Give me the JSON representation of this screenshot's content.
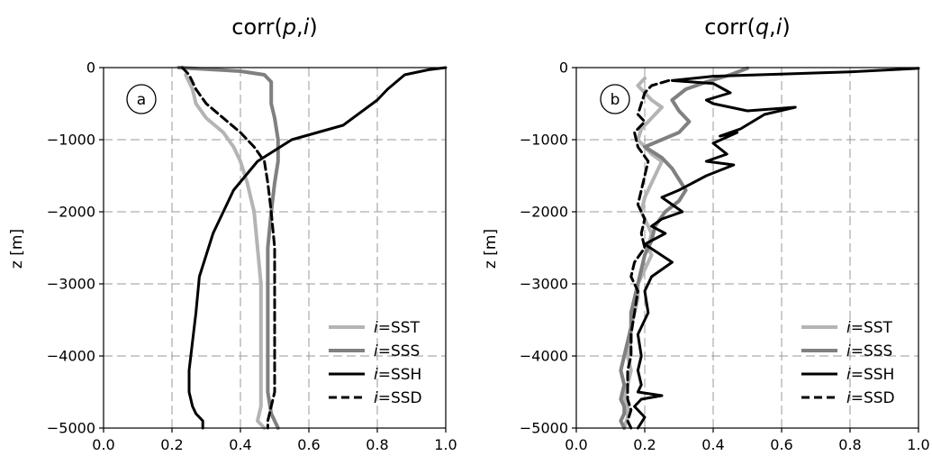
{
  "chart_data": [
    {
      "type": "line",
      "title_prefix": "corr(",
      "title_var": "p",
      "title_sep": ",",
      "title_idx": "i",
      "title_suffix": ")",
      "ylabel": "z [m]",
      "xlim": [
        0.0,
        1.0
      ],
      "ylim": [
        -5000,
        0
      ],
      "xticks": [
        "0.0",
        "0.2",
        "0.4",
        "0.6",
        "0.8",
        "1.0"
      ],
      "yticks": [
        "0",
        "−1000",
        "−2000",
        "−3000",
        "−4000",
        "−5000"
      ],
      "grid": true,
      "panel_label": "a",
      "legend_position": "lower-right",
      "series": [
        {
          "name": "SST",
          "color": "#b4b4b4",
          "style": "solid",
          "width": 4,
          "x": [
            0.24,
            0.26,
            0.27,
            0.3,
            0.35,
            0.38,
            0.4,
            0.42,
            0.44,
            0.45,
            0.46,
            0.46,
            0.46,
            0.46,
            0.46,
            0.46,
            0.45,
            0.47
          ],
          "y": [
            -100,
            -300,
            -500,
            -700,
            -900,
            -1100,
            -1300,
            -1600,
            -2000,
            -2500,
            -3000,
            -3500,
            -4000,
            -4200,
            -4500,
            -4700,
            -4900,
            -5000
          ]
        },
        {
          "name": "SSS",
          "color": "#808080",
          "style": "solid",
          "width": 4,
          "x": [
            0.22,
            0.4,
            0.47,
            0.49,
            0.49,
            0.49,
            0.5,
            0.51,
            0.51,
            0.5,
            0.49,
            0.48,
            0.48,
            0.48,
            0.48,
            0.48,
            0.49,
            0.51
          ],
          "y": [
            0,
            -50,
            -100,
            -200,
            -350,
            -500,
            -700,
            -1000,
            -1300,
            -1600,
            -2000,
            -2500,
            -3000,
            -3500,
            -4000,
            -4500,
            -4800,
            -5000
          ]
        },
        {
          "name": "SSH",
          "color": "#000000",
          "style": "solid",
          "width": 3,
          "x": [
            1.0,
            0.95,
            0.88,
            0.83,
            0.8,
            0.7,
            0.55,
            0.45,
            0.38,
            0.32,
            0.28,
            0.27,
            0.26,
            0.25,
            0.25,
            0.26,
            0.27,
            0.28,
            0.29,
            0.29
          ],
          "y": [
            0,
            -30,
            -100,
            -300,
            -450,
            -800,
            -1000,
            -1300,
            -1700,
            -2300,
            -2900,
            -3400,
            -3800,
            -4200,
            -4500,
            -4700,
            -4800,
            -4850,
            -4900,
            -5000
          ]
        },
        {
          "name": "SSD",
          "color": "#000000",
          "style": "dashed",
          "width": 3,
          "x": [
            0.23,
            0.25,
            0.27,
            0.3,
            0.35,
            0.4,
            0.44,
            0.47,
            0.48,
            0.49,
            0.5,
            0.5,
            0.5,
            0.5,
            0.5,
            0.49,
            0.48,
            0.48
          ],
          "y": [
            0,
            -100,
            -300,
            -500,
            -700,
            -900,
            -1100,
            -1300,
            -1600,
            -2000,
            -2500,
            -3000,
            -3500,
            -4000,
            -4500,
            -4700,
            -4900,
            -5000
          ]
        }
      ]
    },
    {
      "type": "line",
      "title_prefix": "corr(",
      "title_var": "q",
      "title_sep": ",",
      "title_idx": "i",
      "title_suffix": ")",
      "ylabel": "z [m]",
      "xlim": [
        0.0,
        1.0
      ],
      "ylim": [
        -5000,
        0
      ],
      "xticks": [
        "0.0",
        "0.2",
        "0.4",
        "0.6",
        "0.8",
        "1.0"
      ],
      "yticks": [
        "0",
        "−1000",
        "−2000",
        "−3000",
        "−4000",
        "−5000"
      ],
      "grid": true,
      "panel_label": "b",
      "legend_position": "lower-right",
      "series": [
        {
          "name": "SST",
          "color": "#b4b4b4",
          "style": "solid",
          "width": 4,
          "x": [
            0.2,
            0.18,
            0.2,
            0.22,
            0.25,
            0.22,
            0.19,
            0.18,
            0.2,
            0.22,
            0.25,
            0.24,
            0.22,
            0.2,
            0.19,
            0.2,
            0.22,
            0.21,
            0.22,
            0.2,
            0.18,
            0.18,
            0.17,
            0.16,
            0.16,
            0.15,
            0.16,
            0.15,
            0.14,
            0.15,
            0.15,
            0.14
          ],
          "y": [
            -150,
            -250,
            -350,
            -450,
            -550,
            -700,
            -850,
            -1000,
            -1100,
            -1200,
            -1300,
            -1400,
            -1600,
            -1800,
            -2000,
            -2100,
            -2300,
            -2500,
            -2600,
            -2800,
            -3000,
            -3200,
            -3400,
            -3600,
            -3800,
            -4000,
            -4200,
            -4400,
            -4600,
            -4700,
            -4850,
            -5000
          ]
        },
        {
          "name": "SSS",
          "color": "#808080",
          "style": "solid",
          "width": 4,
          "x": [
            0.5,
            0.45,
            0.38,
            0.32,
            0.28,
            0.3,
            0.33,
            0.3,
            0.25,
            0.2,
            0.25,
            0.28,
            0.3,
            0.32,
            0.3,
            0.26,
            0.23,
            0.22,
            0.2,
            0.19,
            0.18,
            0.17,
            0.16,
            0.16,
            0.15,
            0.14,
            0.13,
            0.14,
            0.13,
            0.14,
            0.14,
            0.13,
            0.14
          ],
          "y": [
            -10,
            -100,
            -200,
            -300,
            -450,
            -600,
            -750,
            -900,
            -1000,
            -1100,
            -1250,
            -1400,
            -1550,
            -1700,
            -1850,
            -2000,
            -2200,
            -2400,
            -2600,
            -2800,
            -3000,
            -3200,
            -3400,
            -3600,
            -3800,
            -4000,
            -4200,
            -4400,
            -4600,
            -4700,
            -4800,
            -4900,
            -5000
          ]
        },
        {
          "name": "SSH",
          "color": "#000000",
          "style": "solid",
          "width": 3,
          "x": [
            1.0,
            0.8,
            0.4,
            0.28,
            0.4,
            0.45,
            0.38,
            0.4,
            0.5,
            0.64,
            0.55,
            0.48,
            0.42,
            0.47,
            0.4,
            0.44,
            0.38,
            0.46,
            0.38,
            0.3,
            0.25,
            0.28,
            0.31,
            0.25,
            0.22,
            0.26,
            0.2,
            0.28,
            0.22,
            0.2,
            0.21,
            0.18,
            0.19,
            0.18,
            0.19,
            0.18,
            0.25,
            0.19,
            0.17,
            0.2,
            0.18
          ],
          "y": [
            -10,
            -60,
            -120,
            -180,
            -220,
            -350,
            -450,
            -500,
            -600,
            -550,
            -650,
            -850,
            -950,
            -900,
            -1050,
            -1200,
            -1300,
            -1350,
            -1500,
            -1700,
            -1800,
            -1900,
            -2000,
            -2100,
            -2200,
            -2300,
            -2450,
            -2700,
            -2900,
            -3100,
            -3400,
            -3700,
            -4000,
            -4200,
            -4400,
            -4500,
            -4550,
            -4600,
            -4700,
            -4850,
            -5000
          ]
        },
        {
          "name": "SSD",
          "color": "#000000",
          "style": "dashed",
          "width": 3,
          "x": [
            0.27,
            0.22,
            0.2,
            0.19,
            0.18,
            0.2,
            0.17,
            0.18,
            0.21,
            0.2,
            0.19,
            0.18,
            0.2,
            0.19,
            0.2,
            0.17,
            0.16,
            0.18,
            0.17,
            0.16,
            0.16,
            0.15,
            0.15,
            0.15,
            0.16,
            0.15,
            0.16
          ],
          "y": [
            -180,
            -250,
            -350,
            -500,
            -650,
            -750,
            -900,
            -1100,
            -1300,
            -1500,
            -1700,
            -1900,
            -2100,
            -2300,
            -2500,
            -2700,
            -2900,
            -3100,
            -3400,
            -3700,
            -4000,
            -4200,
            -4400,
            -4600,
            -4750,
            -4900,
            -5000
          ]
        }
      ]
    }
  ]
}
